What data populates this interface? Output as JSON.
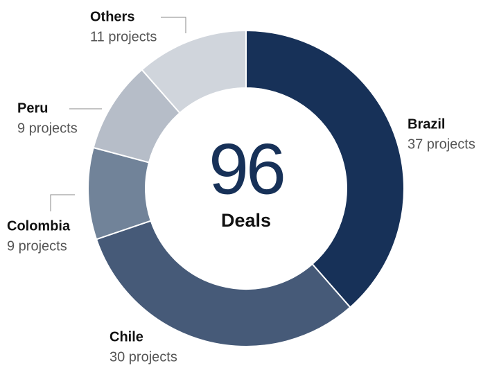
{
  "chart_data": {
    "type": "donut",
    "categories": [
      "Brazil",
      "Chile",
      "Colombia",
      "Peru",
      "Others"
    ],
    "values": [
      37,
      30,
      9,
      9,
      11
    ],
    "value_labels": [
      "37 projects",
      "30 projects",
      "9 projects",
      "9 projects",
      "11 projects"
    ],
    "colors": [
      "#173158",
      "#465a78",
      "#718399",
      "#b6bdc8",
      "#d0d5dc"
    ],
    "total": 96,
    "center_label": "Deals"
  }
}
